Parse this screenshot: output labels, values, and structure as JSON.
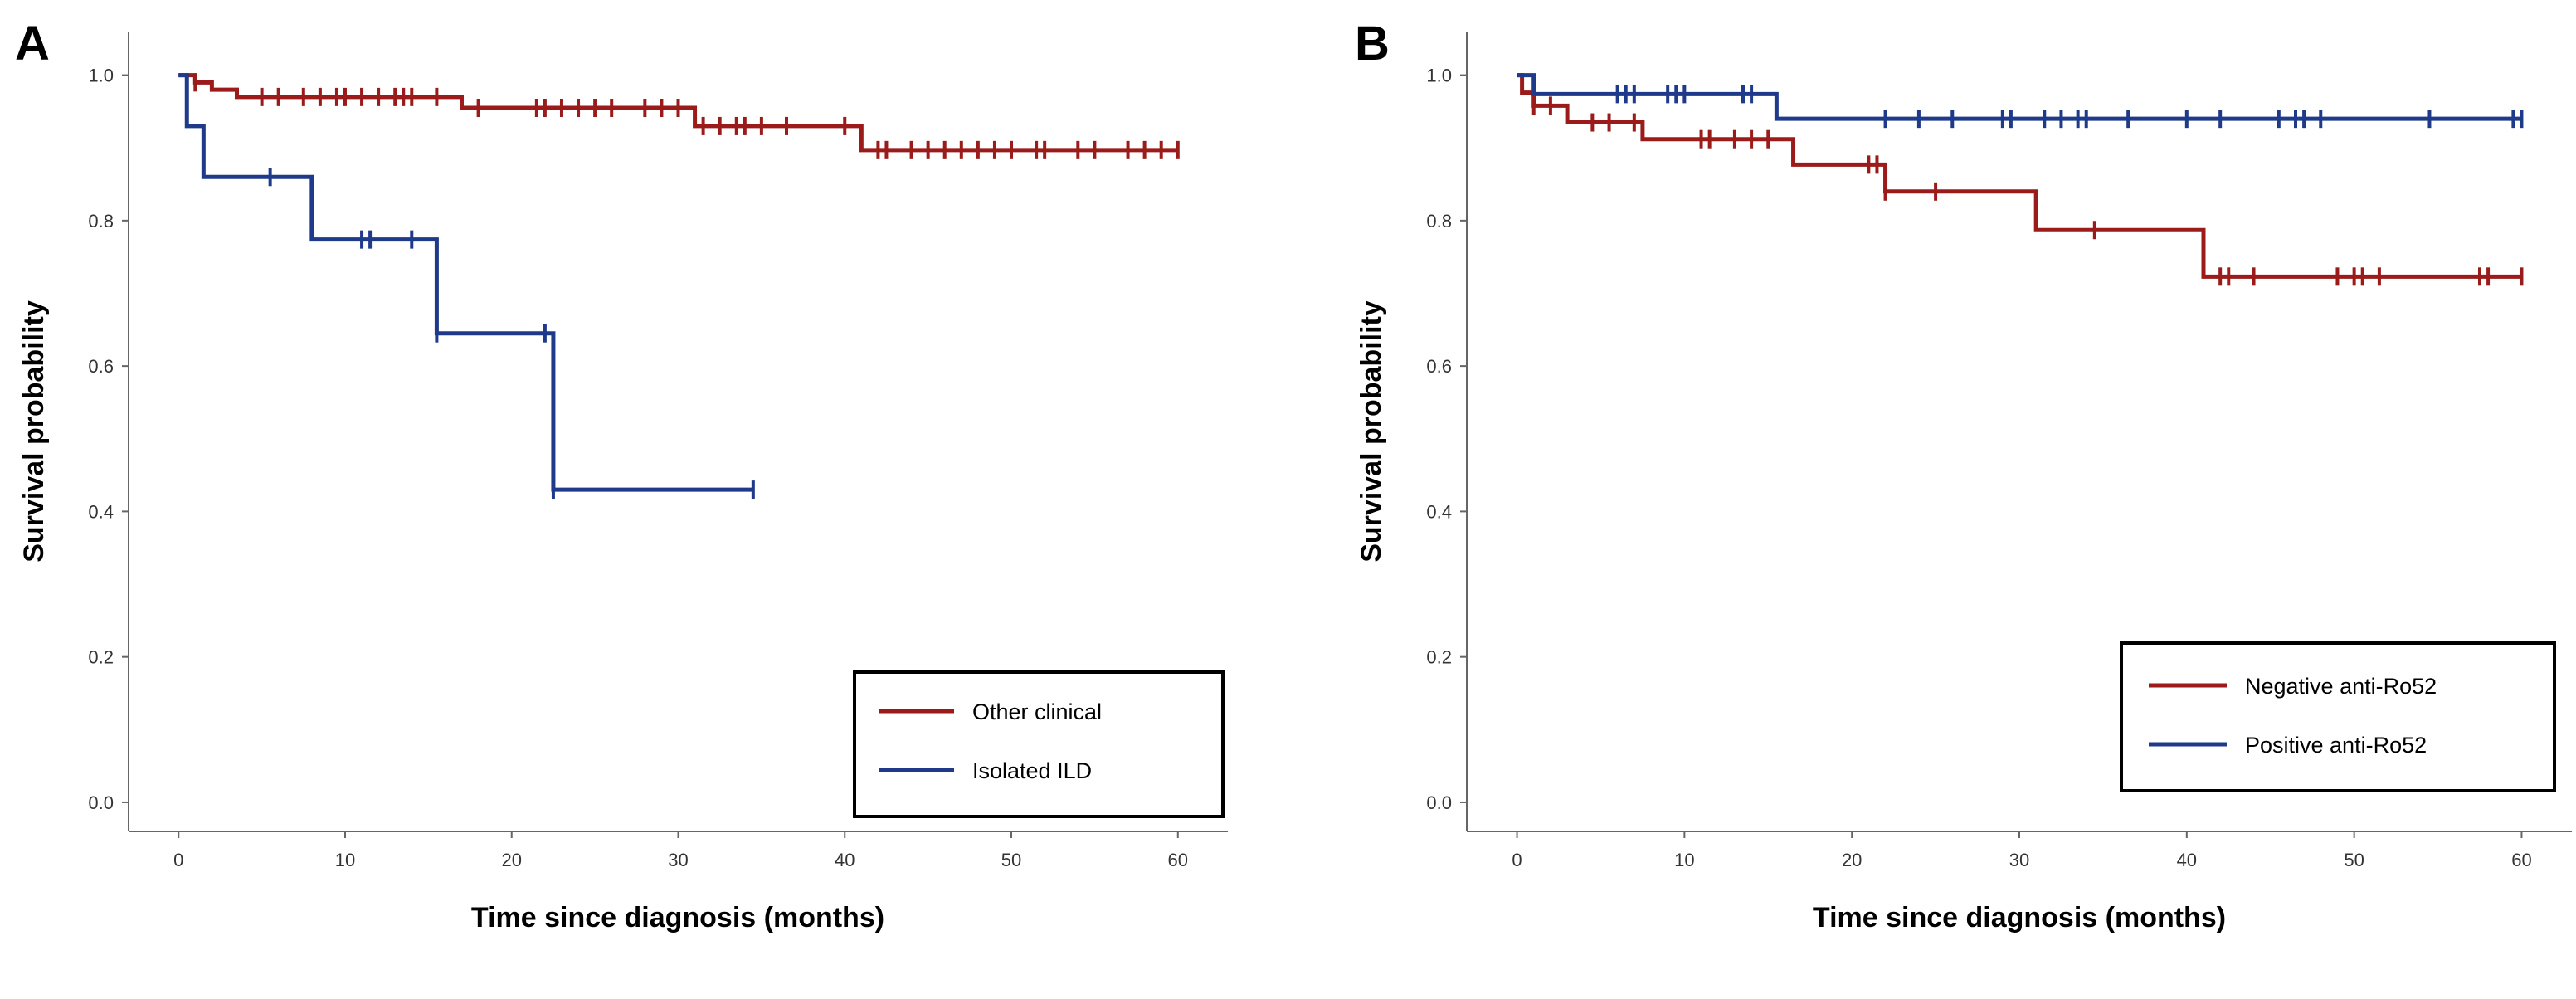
{
  "chart_data": [
    {
      "panel": "A",
      "type": "line",
      "subtype": "kaplan-meier",
      "xlabel": "Time since diagnosis (months)",
      "ylabel": "Survival probability",
      "xlim": [
        -3,
        63
      ],
      "ylim": [
        -0.04,
        1.06
      ],
      "xticks": [
        0,
        10,
        20,
        30,
        40,
        50,
        60
      ],
      "yticks": [
        0.0,
        0.2,
        0.4,
        0.6,
        0.8,
        1.0
      ],
      "xtick_labels": [
        "0",
        "10",
        "20",
        "30",
        "40",
        "50",
        "60"
      ],
      "ytick_labels": [
        "0.0",
        "0.2",
        "0.4",
        "0.6",
        "0.8",
        "1.0"
      ],
      "legend_position": "bottom-right",
      "series": [
        {
          "name": "Other clinical",
          "color": "#9b1b1b",
          "steps": [
            [
              0,
              1.0
            ],
            [
              1,
              0.99
            ],
            [
              2,
              0.98
            ],
            [
              3.5,
              0.97
            ],
            [
              17,
              0.955
            ],
            [
              31,
              0.93
            ],
            [
              41,
              0.897
            ],
            [
              60,
              0.897
            ]
          ],
          "censor": [
            1,
            5,
            6,
            7.5,
            8.5,
            9.5,
            10,
            11,
            12,
            13,
            13.5,
            14,
            15.5,
            18,
            21.5,
            22,
            23,
            24,
            25,
            26,
            28,
            29,
            30,
            31.5,
            32.5,
            33.5,
            34,
            35,
            36.5,
            40,
            42,
            42.5,
            44,
            45,
            46,
            47,
            48,
            49,
            50,
            51.5,
            52,
            54,
            55,
            57,
            58,
            59,
            60
          ]
        },
        {
          "name": "Isolated ILD",
          "color": "#1f3a8a",
          "steps": [
            [
              0,
              1.0
            ],
            [
              0.5,
              0.93
            ],
            [
              1.5,
              0.86
            ],
            [
              8,
              0.774
            ],
            [
              15.5,
              0.645
            ],
            [
              22.5,
              0.43
            ],
            [
              34.5,
              0.43
            ]
          ],
          "censor": [
            5.5,
            11,
            11.5,
            14,
            15.5,
            22,
            22.5,
            34.5
          ]
        }
      ]
    },
    {
      "panel": "B",
      "type": "line",
      "subtype": "kaplan-meier",
      "xlabel": "Time since diagnosis (months)",
      "ylabel": "Survival probability",
      "xlim": [
        -3,
        63
      ],
      "ylim": [
        -0.04,
        1.06
      ],
      "xticks": [
        0,
        10,
        20,
        30,
        40,
        50,
        60
      ],
      "yticks": [
        0.0,
        0.2,
        0.4,
        0.6,
        0.8,
        1.0
      ],
      "xtick_labels": [
        "0",
        "10",
        "20",
        "30",
        "40",
        "50",
        "60"
      ],
      "ytick_labels": [
        "0.0",
        "0.2",
        "0.4",
        "0.6",
        "0.8",
        "1.0"
      ],
      "legend_position": "bottom-right",
      "series": [
        {
          "name": "Negative anti-Ro52",
          "color": "#9b1b1b",
          "steps": [
            [
              0,
              1.0
            ],
            [
              0.3,
              0.976
            ],
            [
              1,
              0.958
            ],
            [
              3,
              0.935
            ],
            [
              7.5,
              0.912
            ],
            [
              16.5,
              0.877
            ],
            [
              22,
              0.84
            ],
            [
              31,
              0.787
            ],
            [
              41,
              0.723
            ],
            [
              60,
              0.723
            ]
          ],
          "censor": [
            1,
            2,
            4.5,
            5.5,
            7,
            11,
            11.5,
            13,
            14,
            15,
            21,
            21.5,
            22,
            25,
            34.5,
            42,
            42.5,
            44,
            49,
            50,
            50.5,
            51.5,
            57.5,
            58,
            60
          ]
        },
        {
          "name": "Positive anti-Ro52",
          "color": "#1f3a8a",
          "steps": [
            [
              0,
              1.0
            ],
            [
              1,
              0.974
            ],
            [
              15.5,
              0.94
            ],
            [
              60,
              0.94
            ]
          ],
          "censor": [
            6,
            6.5,
            7,
            9,
            9.5,
            10,
            13.5,
            14,
            22,
            24,
            26,
            29,
            29.5,
            31.5,
            32.5,
            33.5,
            34,
            36.5,
            40,
            42,
            45.5,
            46.5,
            47,
            48,
            54.5,
            59.5,
            60
          ]
        }
      ]
    }
  ]
}
